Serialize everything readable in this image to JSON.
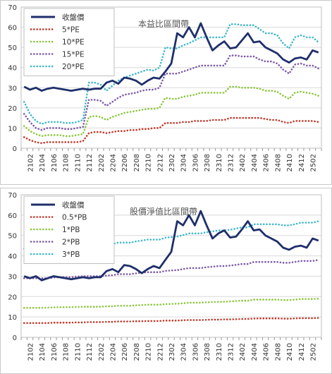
{
  "chart_data": [
    {
      "type": "line",
      "title": "本益比區間帶",
      "xlabel": "",
      "ylabel": "",
      "ylim": [
        0,
        70
      ],
      "yticks": [
        0,
        10,
        20,
        30,
        40,
        50,
        60,
        70
      ],
      "grid": true,
      "legend_position": "top-left",
      "x": [
        "2101",
        "2102",
        "2103",
        "2104",
        "2105",
        "2106",
        "2107",
        "2108",
        "2109",
        "2110",
        "2111",
        "2112",
        "2201",
        "2202",
        "2203",
        "2204",
        "2205",
        "2206",
        "2207",
        "2208",
        "2209",
        "2210",
        "2211",
        "2212",
        "2301",
        "2302",
        "2303",
        "2304",
        "2305",
        "2306",
        "2307",
        "2308",
        "2309",
        "2310",
        "2311",
        "2312",
        "2401",
        "2402",
        "2403",
        "2404",
        "2405",
        "2406",
        "2407",
        "2408",
        "2409",
        "2410",
        "2411",
        "2412",
        "2501",
        "2502",
        "2503"
      ],
      "x_tick_labels": [
        "2102",
        "2104",
        "2106",
        "2108",
        "2110",
        "2112",
        "2202",
        "2204",
        "2206",
        "2208",
        "2210",
        "2212",
        "2302",
        "2304",
        "2306",
        "2308",
        "2310",
        "2312",
        "2402",
        "2404",
        "2406",
        "2408",
        "2410",
        "2412",
        "2502"
      ],
      "series": [
        {
          "name": "收盤價",
          "color": "#1f2f6b",
          "style": "solid",
          "values": [
            30.5,
            29,
            30,
            28.5,
            29.5,
            30,
            29.5,
            29,
            28.5,
            29,
            29.5,
            29,
            29.5,
            29.5,
            32.5,
            33.5,
            32,
            35,
            34.5,
            33.5,
            31.5,
            33.5,
            35,
            34.5,
            38,
            42,
            57,
            55,
            60,
            55,
            62,
            55,
            48.5,
            51,
            53,
            49.5,
            50,
            53.5,
            57,
            52.5,
            53,
            50,
            48.5,
            47,
            44,
            42.5,
            44.5,
            45,
            44,
            48.5,
            47.5
          ]
        },
        {
          "name": "5*PE",
          "color": "#c0392b",
          "style": "dotted",
          "values": [
            5.5,
            4,
            3,
            2.5,
            3,
            3,
            3,
            3,
            3,
            3,
            3.5,
            7.5,
            8,
            8,
            7.5,
            8,
            8.5,
            8.5,
            9,
            9,
            9.5,
            9.5,
            10,
            10,
            12.5,
            12.5,
            12.5,
            13,
            13,
            13.5,
            13.5,
            13.5,
            14,
            14,
            14,
            15,
            15,
            15,
            15,
            15,
            15,
            14.5,
            14,
            14,
            13,
            12.5,
            13.5,
            13.5,
            13.5,
            13.5,
            13
          ]
        },
        {
          "name": "10*PE",
          "color": "#8dc63f",
          "style": "dotted",
          "values": [
            11,
            8.5,
            7,
            6,
            6.5,
            6.5,
            6.5,
            6,
            6,
            6.5,
            7,
            15.5,
            16,
            15.5,
            14,
            15.5,
            16.5,
            17.5,
            18,
            18.5,
            19,
            19.5,
            19.5,
            20,
            25,
            24.5,
            24.5,
            25.5,
            26,
            26.5,
            27.5,
            27.5,
            27.5,
            27.5,
            27.5,
            30.5,
            30.5,
            30,
            30,
            30,
            29.5,
            28.5,
            28.5,
            28,
            26,
            24.5,
            27.5,
            28,
            27.5,
            27,
            26
          ]
        },
        {
          "name": "15*PE",
          "color": "#7d5ba6",
          "style": "dotted",
          "values": [
            17,
            13,
            10,
            9,
            10,
            10,
            10,
            9.5,
            9.5,
            10,
            10.5,
            24,
            24,
            23.5,
            21,
            23,
            25,
            26.5,
            27,
            27.5,
            28.5,
            29,
            29,
            30,
            37,
            37,
            37,
            38,
            39,
            40,
            41,
            41,
            41,
            41,
            41,
            46,
            46,
            45.5,
            45.5,
            45.5,
            44,
            43,
            43,
            42,
            39,
            37,
            41.5,
            42,
            41,
            41,
            39.5
          ]
        },
        {
          "name": "20*PE",
          "color": "#3fb8c8",
          "style": "dotted",
          "values": [
            23,
            17,
            13.5,
            12,
            13,
            13,
            13,
            12.5,
            12.5,
            13,
            14,
            32.5,
            32.5,
            31.5,
            28.5,
            31,
            33.5,
            35,
            36,
            37,
            38,
            39,
            38.5,
            40,
            50,
            49.5,
            49.5,
            51,
            52,
            53.5,
            55,
            55,
            55,
            55,
            55,
            61.5,
            61.5,
            61,
            61,
            61,
            59,
            57,
            57,
            56,
            52,
            49.5,
            55,
            56,
            55,
            55,
            52.5
          ]
        }
      ]
    },
    {
      "type": "line",
      "title": "股價淨值比區間帶",
      "xlabel": "",
      "ylabel": "",
      "ylim": [
        0,
        70
      ],
      "yticks": [
        0,
        10,
        20,
        30,
        40,
        50,
        60,
        70
      ],
      "grid": true,
      "legend_position": "top-left",
      "x": [
        "2101",
        "2102",
        "2103",
        "2104",
        "2105",
        "2106",
        "2107",
        "2108",
        "2109",
        "2110",
        "2111",
        "2112",
        "2201",
        "2202",
        "2203",
        "2204",
        "2205",
        "2206",
        "2207",
        "2208",
        "2209",
        "2210",
        "2211",
        "2212",
        "2301",
        "2302",
        "2303",
        "2304",
        "2305",
        "2306",
        "2307",
        "2308",
        "2309",
        "2310",
        "2311",
        "2312",
        "2401",
        "2402",
        "2403",
        "2404",
        "2405",
        "2406",
        "2407",
        "2408",
        "2409",
        "2410",
        "2411",
        "2412",
        "2501",
        "2502",
        "2503"
      ],
      "x_tick_labels": [
        "2102",
        "2104",
        "2106",
        "2108",
        "2110",
        "2112",
        "2202",
        "2204",
        "2206",
        "2208",
        "2210",
        "2212",
        "2302",
        "2304",
        "2306",
        "2308",
        "2310",
        "2312",
        "2402",
        "2404",
        "2406",
        "2408",
        "2410",
        "2412",
        "2502"
      ],
      "series": [
        {
          "name": "收盤價",
          "color": "#1f2f6b",
          "style": "solid",
          "values": [
            30,
            29,
            30,
            28,
            29,
            30,
            29.5,
            29,
            28.5,
            29,
            29.5,
            29,
            29.5,
            29.5,
            32.5,
            33.5,
            32,
            35.5,
            35,
            33.5,
            31.5,
            33.5,
            35,
            34,
            38,
            42,
            57,
            55,
            60,
            55,
            62,
            55,
            48.5,
            51,
            52.5,
            49,
            49.5,
            53,
            57,
            52.5,
            53,
            50,
            48.5,
            47,
            44,
            43,
            44.5,
            45,
            44,
            48.5,
            47.5
          ]
        },
        {
          "name": "0.5*PB",
          "color": "#c0392b",
          "style": "dotted",
          "values": [
            7,
            7,
            7,
            7,
            7,
            7.2,
            7.2,
            7.2,
            7.2,
            7.3,
            7.3,
            7.5,
            7.5,
            7.5,
            7.6,
            7.6,
            7.8,
            7.8,
            7.8,
            7.9,
            7.9,
            8,
            8,
            8,
            8.2,
            8.2,
            8.2,
            8.4,
            8.5,
            8.5,
            8.5,
            8.6,
            8.7,
            8.7,
            8.8,
            8.8,
            8.9,
            9,
            9,
            9.2,
            9.3,
            9.3,
            9.3,
            9.3,
            9.2,
            9.1,
            9.3,
            9.4,
            9.4,
            9.4,
            9.5
          ]
        },
        {
          "name": "1*PB",
          "color": "#8dc63f",
          "style": "dotted",
          "values": [
            14.5,
            14.5,
            14.5,
            14.5,
            14.6,
            14.7,
            14.8,
            14.8,
            14.8,
            14.9,
            15,
            15,
            15,
            15,
            15.2,
            15.2,
            15.5,
            15.5,
            15.5,
            15.7,
            15.8,
            16,
            16,
            16,
            16.3,
            16.4,
            16.5,
            16.7,
            17,
            17,
            17,
            17.2,
            17.3,
            17.4,
            17.5,
            17.6,
            17.8,
            18,
            18,
            18.5,
            18.5,
            18.5,
            18.5,
            18.5,
            18.3,
            18.3,
            18.5,
            18.8,
            18.8,
            18.8,
            19
          ]
        },
        {
          "name": "2*PB",
          "color": "#7d5ba6",
          "style": "dotted",
          "values": [
            29,
            29,
            29,
            29,
            29,
            29.3,
            29.5,
            29.5,
            29.5,
            29.8,
            30,
            30,
            30,
            30,
            30.3,
            30.5,
            31,
            31,
            31,
            31.4,
            31.7,
            32,
            32,
            32,
            32.6,
            32.8,
            33,
            33.5,
            34,
            34,
            34,
            34.4,
            34.7,
            35,
            35,
            35.2,
            35.6,
            36,
            36,
            37,
            37,
            37,
            37,
            37,
            36.6,
            36.6,
            37,
            37.5,
            37.5,
            37.5,
            38
          ]
        },
        {
          "name": "3*PB",
          "color": "#3fb8c8",
          "style": "dotted",
          "values": [
            43.5,
            43.5,
            43.5,
            43.5,
            43.5,
            44,
            44.3,
            44.3,
            44.3,
            44.7,
            45,
            45,
            45,
            45,
            45.5,
            45.8,
            46.5,
            46.5,
            46.5,
            47.1,
            47.5,
            48,
            48,
            48,
            48.9,
            49.2,
            49.5,
            50.2,
            51,
            51,
            51,
            51.6,
            52,
            52.5,
            52.5,
            52.8,
            53.4,
            54,
            54,
            55.5,
            55.5,
            55.5,
            55.5,
            55.5,
            55,
            55,
            55.5,
            56.3,
            56.3,
            56.3,
            57
          ]
        }
      ]
    }
  ]
}
